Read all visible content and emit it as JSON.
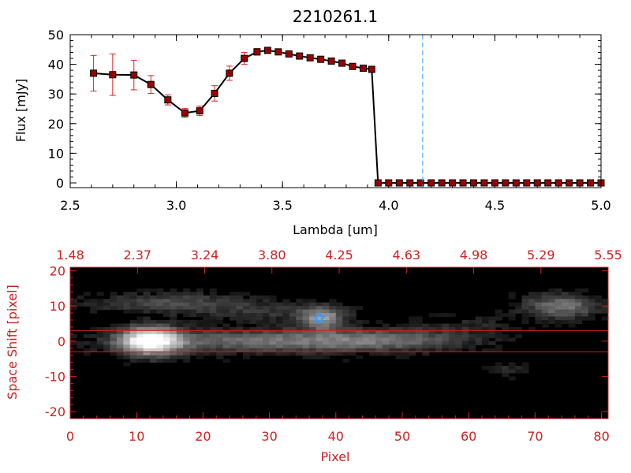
{
  "colors": {
    "axis_black": "#000000",
    "axis_red": "#cc2222",
    "marker_fill": "#990000",
    "error_bar": "#dd2222",
    "cutoff_line": "#3399ff",
    "star": "#3399ff",
    "image_background": "#000000"
  },
  "chart_data": [
    {
      "type": "line",
      "title": "2210261.1",
      "xlabel": "Lambda [um]",
      "ylabel": "Flux [mJy]",
      "xlim": [
        2.5,
        5.0
      ],
      "ylim": [
        0,
        50
      ],
      "xticks": [
        "2.5",
        "3.0",
        "3.5",
        "4.0",
        "4.5",
        "5.0"
      ],
      "yticks": [
        "0",
        "10",
        "20",
        "30",
        "40",
        "50"
      ],
      "grid": false,
      "vertical_line_x": 4.16,
      "series": [
        {
          "marker": "square",
          "x": [
            2.61,
            2.7,
            2.8,
            2.88,
            2.96,
            3.04,
            3.11,
            3.18,
            3.25,
            3.32,
            3.38,
            3.43,
            3.48,
            3.53,
            3.58,
            3.63,
            3.68,
            3.73,
            3.78,
            3.83,
            3.88,
            3.92,
            3.95,
            4.0,
            4.05,
            4.1,
            4.15,
            4.2,
            4.25,
            4.3,
            4.35,
            4.4,
            4.45,
            4.5,
            4.55,
            4.6,
            4.65,
            4.7,
            4.75,
            4.8,
            4.85,
            4.9,
            4.95,
            5.0
          ],
          "y": [
            37.0,
            36.5,
            36.4,
            33.2,
            28.0,
            23.6,
            24.3,
            30.2,
            37.0,
            42.0,
            44.2,
            44.7,
            44.2,
            43.5,
            42.8,
            42.2,
            41.7,
            41.1,
            40.4,
            39.3,
            38.7,
            38.3,
            0,
            0,
            0,
            0,
            0,
            0,
            0,
            0,
            0,
            0,
            0,
            0,
            0,
            0,
            0,
            0,
            0,
            0,
            0,
            0,
            0,
            0
          ],
          "yerr": [
            6.0,
            7.0,
            5.0,
            3.0,
            1.7,
            1.5,
            1.6,
            2.6,
            2.4,
            2.0,
            1.1,
            0.9,
            0.8,
            0.8,
            0.7,
            0.7,
            0.7,
            0.7,
            0.7,
            0.7,
            0.7,
            0.6,
            0,
            0,
            0,
            0,
            0,
            0,
            0,
            0,
            0,
            0,
            0,
            0,
            0,
            0,
            0,
            0,
            0,
            0,
            0,
            0,
            0,
            0
          ]
        }
      ]
    },
    {
      "type": "heatmap",
      "xlabel": "Pixel",
      "ylabel": "Space Shift [pixel]",
      "xlim": [
        0,
        81
      ],
      "ylim": [
        -22,
        21
      ],
      "xticks": [
        "0",
        "10",
        "20",
        "30",
        "40",
        "50",
        "60",
        "70",
        "80"
      ],
      "yticks": [
        "-20",
        "-10",
        "0",
        "10",
        "20"
      ],
      "top_axis_ticks": [
        "1.48",
        "2.37",
        "3.24",
        "3.80",
        "4.25",
        "4.63",
        "4.98",
        "5.29",
        "5.55"
      ],
      "extraction_lines_y": [
        3,
        -3
      ],
      "star_position": [
        37.5,
        6.5
      ],
      "blobs": [
        {
          "x": 12,
          "y": 0.0,
          "sx": 3.2,
          "sy": 2.8,
          "amp": 1.0
        },
        {
          "x": 30,
          "y": 0.0,
          "sx": 16,
          "sy": 2.3,
          "amp": 0.42
        },
        {
          "x": 48,
          "y": 0.5,
          "sx": 9,
          "sy": 2.2,
          "amp": 0.25
        },
        {
          "x": 38,
          "y": 6.5,
          "sx": 2.2,
          "sy": 2.2,
          "amp": 0.55
        },
        {
          "x": 15,
          "y": 11.0,
          "sx": 9,
          "sy": 2.0,
          "amp": 0.28
        },
        {
          "x": 30,
          "y": 8.0,
          "sx": 8,
          "sy": 2.0,
          "amp": 0.18
        },
        {
          "x": 74,
          "y": 10.0,
          "sx": 4,
          "sy": 2.5,
          "amp": 0.45
        },
        {
          "x": 60,
          "y": 5.0,
          "sx": 6,
          "sy": 2.0,
          "amp": 0.12
        },
        {
          "x": 66,
          "y": -8.0,
          "sx": 2,
          "sy": 1.5,
          "amp": 0.15
        }
      ]
    }
  ]
}
